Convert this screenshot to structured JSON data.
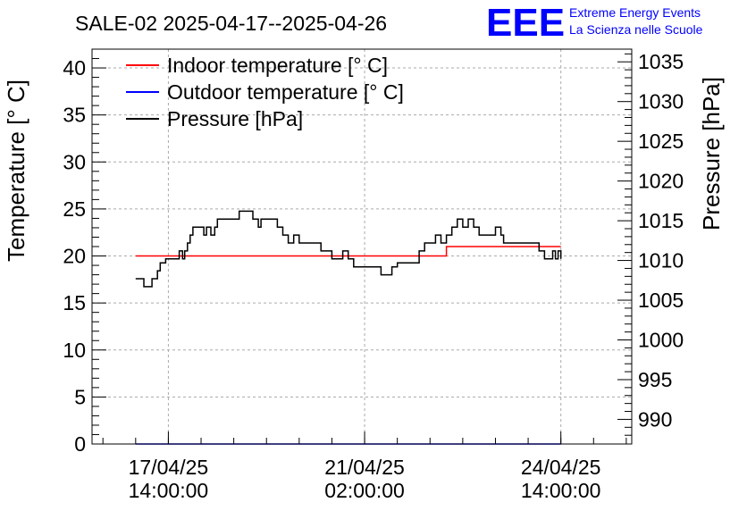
{
  "chart_data": {
    "type": "line",
    "title": "SALE-02 2025-04-17--2025-04-26",
    "ylabel": "Temperature [° C]",
    "y2label": "Pressure [hPa]",
    "ylim": [
      0,
      42
    ],
    "y2lim": [
      986.9,
      1036.6
    ],
    "yticks": [
      "0",
      "5",
      "10",
      "15",
      "20",
      "25",
      "30",
      "35",
      "40"
    ],
    "y2ticks": [
      "990",
      "995",
      "1000",
      "1005",
      "1010",
      "1015",
      "1020",
      "1025",
      "1030",
      "1035"
    ],
    "xticks": [
      {
        "value": 0,
        "line1": "17/04/25",
        "line2": "14:00:00"
      },
      {
        "value": 36,
        "line1": "21/04/25",
        "line2": "02:00:00"
      },
      {
        "value": 72,
        "line1": "24/04/25",
        "line2": "14:00:00"
      }
    ],
    "xlim": [
      -14,
      85
    ],
    "grid": true,
    "legend_position": "top-left",
    "series": [
      {
        "name": "Indoor temperature [° C]",
        "color": "#ff0000",
        "axis": "left",
        "x": [
          -6,
          51,
          51,
          72
        ],
        "y": [
          20,
          20,
          21,
          21
        ]
      },
      {
        "name": "Outdoor temperature [° C]",
        "color": "#0000ff",
        "axis": "left",
        "x": [
          -6,
          72
        ],
        "y": [
          0,
          0
        ]
      },
      {
        "name": "Pressure [hPa]",
        "color": "#000000",
        "axis": "right",
        "x": [
          -6,
          -5,
          -4.5,
          -3.8,
          -3,
          -2,
          -1.5,
          -0.5,
          0.5,
          1.5,
          2,
          2.6,
          3,
          3.5,
          4,
          4.5,
          5,
          6,
          6.5,
          7,
          7.8,
          8.5,
          9,
          10,
          10.5,
          11,
          12,
          13,
          14,
          15,
          15.5,
          16,
          16.5,
          17,
          18,
          19,
          20,
          21,
          22,
          22.5,
          23,
          24,
          25,
          26,
          27,
          28,
          29,
          30,
          31,
          32,
          33,
          34,
          35,
          35.5,
          36,
          37,
          38,
          39,
          40,
          41,
          42,
          43,
          44,
          45,
          46,
          47,
          48,
          49,
          50,
          51,
          52,
          53,
          54,
          55,
          55.5,
          56,
          57,
          58,
          59,
          60,
          61,
          61.5,
          62,
          63,
          64,
          65,
          66,
          67,
          68,
          69,
          70,
          70.5,
          71,
          71.5,
          72
        ],
        "y": [
          1007.7,
          1007.7,
          1006.7,
          1006.7,
          1007.7,
          1008.7,
          1009.7,
          1010.2,
          1010.2,
          1010.2,
          1011.2,
          1010.2,
          1011.2,
          1012.2,
          1013.2,
          1014.2,
          1014.2,
          1014.2,
          1013.2,
          1014.2,
          1013.2,
          1014.2,
          1015.2,
          1015.2,
          1015.2,
          1015.2,
          1015.2,
          1016.2,
          1016.2,
          1016.2,
          1015.2,
          1015.2,
          1014.2,
          1015.2,
          1015.2,
          1015.2,
          1014.2,
          1013.2,
          1012.2,
          1012.2,
          1013.2,
          1012.2,
          1012.2,
          1012.2,
          1012.2,
          1011.2,
          1011.2,
          1010.2,
          1010.2,
          1011.2,
          1010.2,
          1009.2,
          1009.2,
          1009.2,
          1009.2,
          1009.2,
          1009.2,
          1008.2,
          1008.2,
          1009.2,
          1009.7,
          1009.7,
          1009.7,
          1009.7,
          1011.2,
          1012.2,
          1012.2,
          1013.2,
          1012.2,
          1013.2,
          1014.2,
          1015.2,
          1014.2,
          1015.2,
          1015.2,
          1014.2,
          1013.2,
          1013.2,
          1013.2,
          1014.2,
          1013.2,
          1012.2,
          1012.2,
          1012.2,
          1012.2,
          1012.2,
          1012.2,
          1012.2,
          1011.2,
          1010.2,
          1010.2,
          1011.2,
          1010.2,
          1011.2,
          1010.2
        ]
      }
    ]
  },
  "branding": {
    "logo_text": "EEE",
    "line1": "Extreme Energy Events",
    "line2": "La Scienza nelle Scuole",
    "color": "#0000ff"
  }
}
